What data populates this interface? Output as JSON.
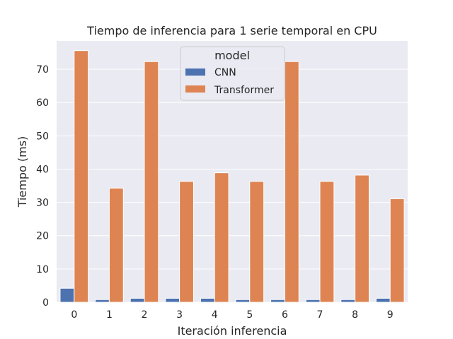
{
  "chart_data": {
    "type": "bar",
    "title": "Tiempo de inferencia para 1 serie temporal en CPU",
    "xlabel": "Iteración inferencia",
    "ylabel": "Tiempo (ms)",
    "categories": [
      "0",
      "1",
      "2",
      "3",
      "4",
      "5",
      "6",
      "7",
      "8",
      "9"
    ],
    "ylim": [
      0,
      78.5
    ],
    "yticks": [
      0,
      10,
      20,
      30,
      40,
      50,
      60,
      70
    ],
    "grid": true,
    "legend": {
      "title": "model",
      "placement": "top-center"
    },
    "series": [
      {
        "name": "CNN",
        "color": "#4c72b0",
        "values": [
          4.2,
          0.8,
          1.2,
          1.2,
          1.2,
          0.8,
          0.8,
          0.8,
          0.8,
          1.2
        ]
      },
      {
        "name": "Transformer",
        "color": "#dd8452",
        "values": [
          75.6,
          34.3,
          72.3,
          36.3,
          38.9,
          36.3,
          72.3,
          36.3,
          38.2,
          31.1
        ]
      }
    ],
    "colors": {
      "background": "#eaeaf2",
      "grid": "#ffffff"
    }
  }
}
